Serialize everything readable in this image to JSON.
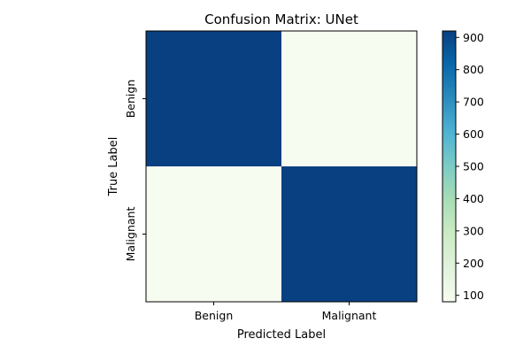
{
  "chart_data": {
    "type": "heatmap",
    "title": "Confusion Matrix: UNet",
    "xlabel": "Predicted Label",
    "ylabel": "True Label",
    "x_categories": [
      "Benign",
      "Malignant"
    ],
    "y_categories": [
      "Benign",
      "Malignant"
    ],
    "values": [
      [
        920,
        80
      ],
      [
        80,
        920
      ]
    ],
    "colormap": "GnBu",
    "color_low": "#f7fcf0",
    "color_high": "#084081",
    "colorbar": {
      "range": [
        80,
        920
      ],
      "ticks": [
        100,
        200,
        300,
        400,
        500,
        600,
        700,
        800,
        900
      ]
    },
    "grid": false
  }
}
